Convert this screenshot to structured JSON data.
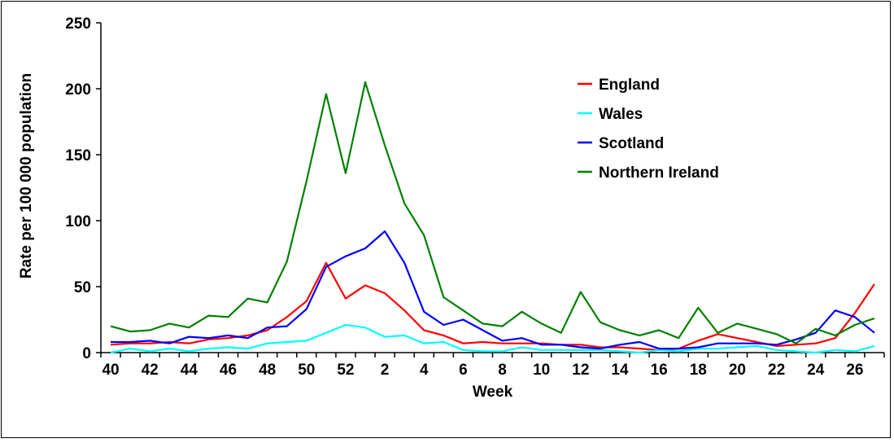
{
  "chart_data": {
    "type": "line",
    "xlabel": "Week",
    "ylabel": "Rate per 100 000 population",
    "ylim": [
      0,
      250
    ],
    "yticks": [
      0,
      50,
      100,
      150,
      200,
      250
    ],
    "x": [
      "40",
      "41",
      "42",
      "43",
      "44",
      "45",
      "46",
      "47",
      "48",
      "49",
      "50",
      "51",
      "52",
      "1",
      "2",
      "3",
      "4",
      "5",
      "6",
      "7",
      "8",
      "9",
      "10",
      "11",
      "12",
      "13",
      "14",
      "15",
      "16",
      "17",
      "18",
      "19",
      "20",
      "21",
      "22",
      "23",
      "24",
      "25",
      "26",
      "27"
    ],
    "xtick_labels": [
      "40",
      "42",
      "44",
      "46",
      "48",
      "50",
      "52",
      "2",
      "4",
      "6",
      "8",
      "10",
      "12",
      "14",
      "16",
      "18",
      "20",
      "22",
      "24",
      "26"
    ],
    "legend_position": "top-right",
    "grid": false,
    "series": [
      {
        "name": "England",
        "color": "#ff0000",
        "values": [
          6,
          7,
          7,
          8,
          7,
          10,
          11,
          13,
          17,
          27,
          39,
          68,
          41,
          51,
          45,
          32,
          17,
          13,
          7,
          8,
          7,
          7,
          7,
          6,
          6,
          4,
          4,
          3,
          2,
          3,
          9,
          14,
          11,
          8,
          5,
          6,
          7,
          11,
          30,
          52
        ]
      },
      {
        "name": "Wales",
        "color": "#00ffff",
        "values": [
          0,
          3,
          1,
          3,
          1,
          3,
          4,
          3,
          7,
          8,
          9,
          15,
          21,
          19,
          12,
          13,
          7,
          8,
          2,
          1,
          1,
          4,
          2,
          2,
          2,
          2,
          1,
          0,
          2,
          1,
          3,
          3,
          4,
          5,
          2,
          1,
          0,
          2,
          1,
          5
        ]
      },
      {
        "name": "Scotland",
        "color": "#0000ff",
        "values": [
          8,
          8,
          9,
          7,
          12,
          11,
          13,
          11,
          19,
          20,
          33,
          65,
          73,
          79,
          92,
          68,
          31,
          21,
          25,
          17,
          9,
          11,
          6,
          6,
          4,
          3,
          6,
          8,
          3,
          3,
          4,
          7,
          7,
          7,
          6,
          10,
          15,
          32,
          27,
          15
        ]
      },
      {
        "name": "Northern Ireland",
        "color": "#008000",
        "values": [
          20,
          16,
          17,
          22,
          19,
          28,
          27,
          41,
          38,
          69,
          130,
          196,
          136,
          205,
          157,
          113,
          89,
          42,
          32,
          22,
          20,
          31,
          22,
          15,
          46,
          23,
          17,
          13,
          17,
          11,
          34,
          15,
          22,
          18,
          14,
          7,
          18,
          13,
          21,
          26
        ]
      }
    ]
  }
}
